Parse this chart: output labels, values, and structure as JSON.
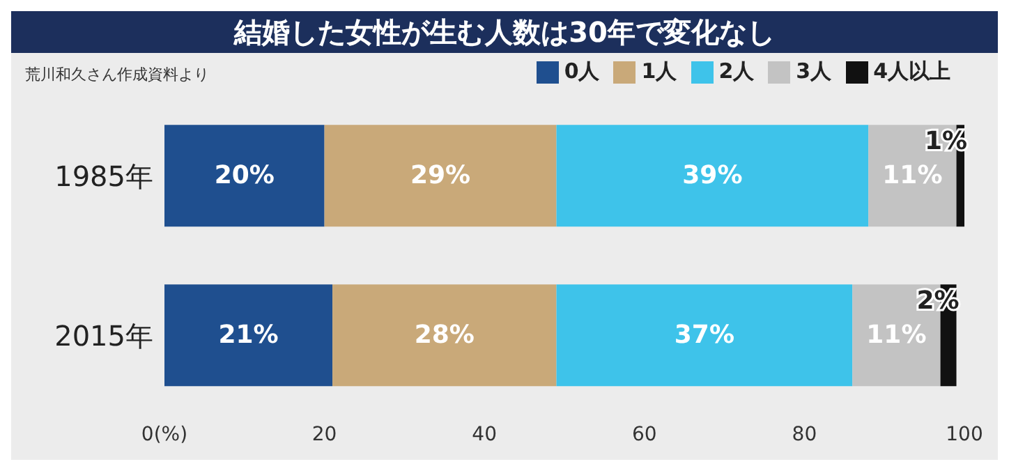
{
  "chart_data": {
    "type": "bar",
    "orientation": "horizontal",
    "stacked": true,
    "title": "結婚した女性が生む人数は30年で変化なし",
    "annotations": [
      "荒川和久さん作成資料より"
    ],
    "categories": [
      "1985年",
      "2015年"
    ],
    "series": [
      {
        "name": "0人",
        "color": "#1f4f8f",
        "values": [
          20,
          21
        ],
        "value_labels": [
          "20%",
          "21%"
        ]
      },
      {
        "name": "1人",
        "color": "#c9a979",
        "values": [
          29,
          28
        ],
        "value_labels": [
          "29%",
          "28%"
        ]
      },
      {
        "name": "2人",
        "color": "#3ec3ea",
        "values": [
          39,
          37
        ],
        "value_labels": [
          "39%",
          "37%"
        ]
      },
      {
        "name": "3人",
        "color": "#c3c3c3",
        "values": [
          11,
          11
        ],
        "value_labels": [
          "11%",
          "11%"
        ]
      },
      {
        "name": "4人以上",
        "color": "#111111",
        "values": [
          1,
          2
        ],
        "value_labels": [
          "1%",
          "2%"
        ]
      }
    ],
    "xlim": [
      0,
      100
    ],
    "xticks": [
      {
        "value": 0,
        "label": "0(%)"
      },
      20,
      40,
      60,
      80,
      100
    ],
    "grid": false,
    "legend": "top right"
  }
}
